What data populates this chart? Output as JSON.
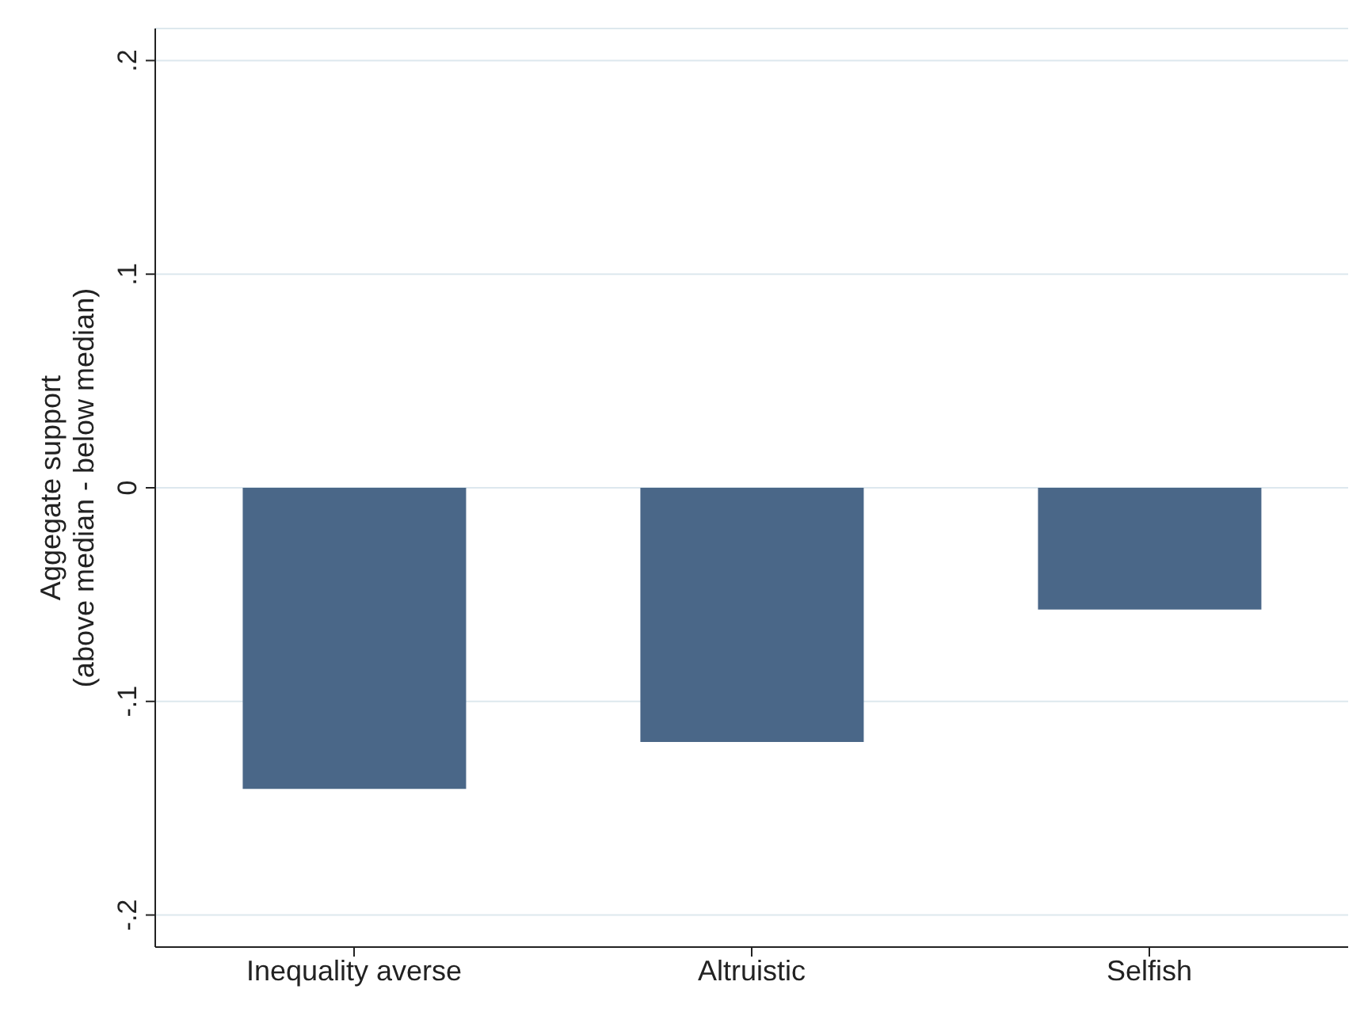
{
  "chart_data": {
    "type": "bar",
    "ylabel": "Aggegate support\n(above median - below median)",
    "categories": [
      "Inequality averse",
      "Altruistic",
      "Selfish"
    ],
    "values": [
      -0.141,
      -0.119,
      -0.057
    ],
    "color": "#4a6788",
    "ylim": [
      -0.215,
      0.215
    ],
    "yticks": [
      {
        "value": -0.2,
        "label": "-.2"
      },
      {
        "value": -0.1,
        "label": "-.1"
      },
      0,
      {
        "value": 0.1,
        "label": ".1"
      },
      {
        "value": 0.2,
        "label": ".2"
      }
    ],
    "grid": "y"
  }
}
